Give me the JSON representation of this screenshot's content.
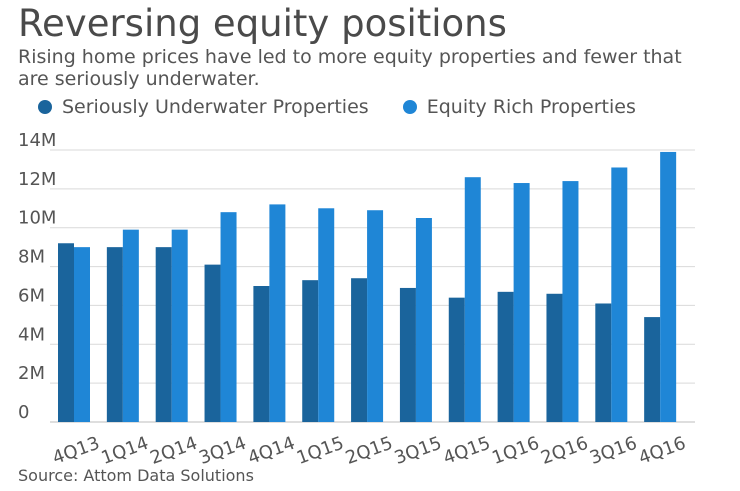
{
  "header": {
    "title": "Reversing equity positions",
    "subtitle": "Rising home prices have led to more equity properties and fewer that are seriously underwater."
  },
  "legend": {
    "items": [
      {
        "label": "Seriously Underwater Properties",
        "color": "#1a649c"
      },
      {
        "label": "Equity Rich Properties",
        "color": "#1f86d6"
      }
    ]
  },
  "footer": {
    "source": "Source: Attom Data Solutions"
  },
  "chart_data": {
    "type": "bar",
    "title": "Reversing equity positions",
    "xlabel": "",
    "ylabel": "",
    "ylim": [
      0,
      14
    ],
    "yticks": [
      0,
      2,
      4,
      6,
      8,
      10,
      12,
      14
    ],
    "ytick_labels": [
      "0",
      "2M",
      "4M",
      "6M",
      "8M",
      "10M",
      "12M",
      "14M"
    ],
    "grid": true,
    "legend_position": "top",
    "categories": [
      "4Q13",
      "1Q14",
      "2Q14",
      "3Q14",
      "4Q14",
      "1Q15",
      "2Q15",
      "3Q15",
      "4Q15",
      "1Q16",
      "2Q16",
      "3Q16",
      "4Q16"
    ],
    "series": [
      {
        "name": "Seriously Underwater Properties",
        "color": "#1a649c",
        "values": [
          9.2,
          9.0,
          9.0,
          8.1,
          7.0,
          7.3,
          7.4,
          6.9,
          6.4,
          6.7,
          6.6,
          6.1,
          5.4
        ]
      },
      {
        "name": "Equity Rich Properties",
        "color": "#1f86d6",
        "values": [
          9.0,
          9.9,
          9.9,
          10.8,
          11.2,
          11.0,
          10.9,
          10.5,
          12.6,
          12.3,
          12.4,
          13.1,
          13.9
        ]
      }
    ]
  }
}
